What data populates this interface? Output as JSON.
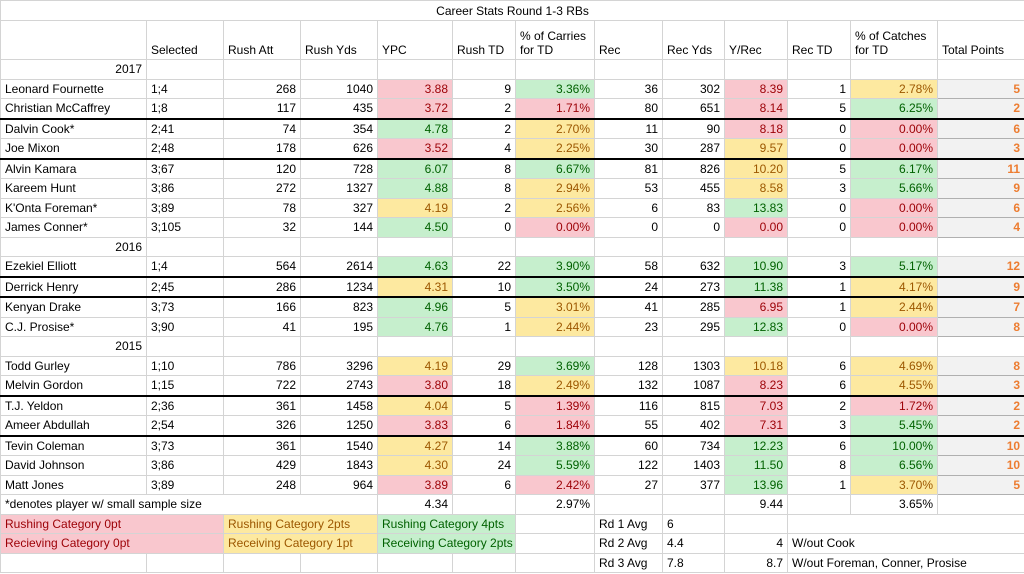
{
  "title": "Career Stats Round 1-3 RBs",
  "headers": [
    "",
    "Selected",
    "Rush Att",
    "Rush Yds",
    "YPC",
    "Rush TD",
    "% of Carries for TD",
    "Rec",
    "Rec Yds",
    "Y/Rec",
    "Rec TD",
    "% of Catches for TD",
    "Total Points"
  ],
  "groups": [
    {
      "year": "2017",
      "players": [
        {
          "name": "Leonard Fournette",
          "selected": "1;4",
          "rush_att": "268",
          "rush_yds": "1040",
          "ypc": "3.88",
          "ypc_c": "red",
          "rush_td": "9",
          "pct_carries": "3.36%",
          "pct_carries_c": "grn",
          "rec": "36",
          "rec_yds": "302",
          "y_rec": "8.39",
          "y_rec_c": "red",
          "rec_td": "1",
          "pct_catches": "2.78%",
          "pct_catches_c": "yel",
          "points": "5",
          "sep": false
        },
        {
          "name": "Christian McCaffrey",
          "selected": "1;8",
          "rush_att": "117",
          "rush_yds": "435",
          "ypc": "3.72",
          "ypc_c": "red",
          "rush_td": "2",
          "pct_carries": "1.71%",
          "pct_carries_c": "red",
          "rec": "80",
          "rec_yds": "651",
          "y_rec": "8.14",
          "y_rec_c": "red",
          "rec_td": "5",
          "pct_catches": "6.25%",
          "pct_catches_c": "grn",
          "points": "2",
          "sep": false
        },
        {
          "name": "Dalvin Cook*",
          "selected": "2;41",
          "rush_att": "74",
          "rush_yds": "354",
          "ypc": "4.78",
          "ypc_c": "grn",
          "rush_td": "2",
          "pct_carries": "2.70%",
          "pct_carries_c": "yel",
          "rec": "11",
          "rec_yds": "90",
          "y_rec": "8.18",
          "y_rec_c": "red",
          "rec_td": "0",
          "pct_catches": "0.00%",
          "pct_catches_c": "red",
          "points": "6",
          "sep": true
        },
        {
          "name": "Joe Mixon",
          "selected": "2;48",
          "rush_att": "178",
          "rush_yds": "626",
          "ypc": "3.52",
          "ypc_c": "red",
          "rush_td": "4",
          "pct_carries": "2.25%",
          "pct_carries_c": "yel",
          "rec": "30",
          "rec_yds": "287",
          "y_rec": "9.57",
          "y_rec_c": "yel",
          "rec_td": "0",
          "pct_catches": "0.00%",
          "pct_catches_c": "red",
          "points": "3",
          "sep": false
        },
        {
          "name": "Alvin Kamara",
          "selected": "3;67",
          "rush_att": "120",
          "rush_yds": "728",
          "ypc": "6.07",
          "ypc_c": "grn",
          "rush_td": "8",
          "pct_carries": "6.67%",
          "pct_carries_c": "grn",
          "rec": "81",
          "rec_yds": "826",
          "y_rec": "10.20",
          "y_rec_c": "yel",
          "rec_td": "5",
          "pct_catches": "6.17%",
          "pct_catches_c": "grn",
          "points": "11",
          "sep": true
        },
        {
          "name": "Kareem Hunt",
          "selected": "3;86",
          "rush_att": "272",
          "rush_yds": "1327",
          "ypc": "4.88",
          "ypc_c": "grn",
          "rush_td": "8",
          "pct_carries": "2.94%",
          "pct_carries_c": "yel",
          "rec": "53",
          "rec_yds": "455",
          "y_rec": "8.58",
          "y_rec_c": "yel",
          "rec_td": "3",
          "pct_catches": "5.66%",
          "pct_catches_c": "grn",
          "points": "9",
          "sep": false
        },
        {
          "name": "K'Onta Foreman*",
          "selected": "3;89",
          "rush_att": "78",
          "rush_yds": "327",
          "ypc": "4.19",
          "ypc_c": "yel",
          "rush_td": "2",
          "pct_carries": "2.56%",
          "pct_carries_c": "yel",
          "rec": "6",
          "rec_yds": "83",
          "y_rec": "13.83",
          "y_rec_c": "grn",
          "rec_td": "0",
          "pct_catches": "0.00%",
          "pct_catches_c": "red",
          "points": "6",
          "sep": false
        },
        {
          "name": "James Conner*",
          "selected": "3;105",
          "rush_att": "32",
          "rush_yds": "144",
          "ypc": "4.50",
          "ypc_c": "grn",
          "rush_td": "0",
          "pct_carries": "0.00%",
          "pct_carries_c": "red",
          "rec": "0",
          "rec_yds": "0",
          "y_rec": "0.00",
          "y_rec_c": "red",
          "rec_td": "0",
          "pct_catches": "0.00%",
          "pct_catches_c": "red",
          "points": "4",
          "sep": false
        }
      ]
    },
    {
      "year": "2016",
      "players": [
        {
          "name": "Ezekiel Elliott",
          "selected": "1;4",
          "rush_att": "564",
          "rush_yds": "2614",
          "ypc": "4.63",
          "ypc_c": "grn",
          "rush_td": "22",
          "pct_carries": "3.90%",
          "pct_carries_c": "grn",
          "rec": "58",
          "rec_yds": "632",
          "y_rec": "10.90",
          "y_rec_c": "grn",
          "rec_td": "3",
          "pct_catches": "5.17%",
          "pct_catches_c": "grn",
          "points": "12",
          "sep": false
        },
        {
          "name": "Derrick Henry",
          "selected": "2;45",
          "rush_att": "286",
          "rush_yds": "1234",
          "ypc": "4.31",
          "ypc_c": "yel",
          "rush_td": "10",
          "pct_carries": "3.50%",
          "pct_carries_c": "grn",
          "rec": "24",
          "rec_yds": "273",
          "y_rec": "11.38",
          "y_rec_c": "grn",
          "rec_td": "1",
          "pct_catches": "4.17%",
          "pct_catches_c": "yel",
          "points": "9",
          "sep": true
        },
        {
          "name": "Kenyan Drake",
          "selected": "3;73",
          "rush_att": "166",
          "rush_yds": "823",
          "ypc": "4.96",
          "ypc_c": "grn",
          "rush_td": "5",
          "pct_carries": "3.01%",
          "pct_carries_c": "yel",
          "rec": "41",
          "rec_yds": "285",
          "y_rec": "6.95",
          "y_rec_c": "red",
          "rec_td": "1",
          "pct_catches": "2.44%",
          "pct_catches_c": "yel",
          "points": "7",
          "sep": true
        },
        {
          "name": "C.J. Prosise*",
          "selected": "3;90",
          "rush_att": "41",
          "rush_yds": "195",
          "ypc": "4.76",
          "ypc_c": "grn",
          "rush_td": "1",
          "pct_carries": "2.44%",
          "pct_carries_c": "yel",
          "rec": "23",
          "rec_yds": "295",
          "y_rec": "12.83",
          "y_rec_c": "grn",
          "rec_td": "0",
          "pct_catches": "0.00%",
          "pct_catches_c": "red",
          "points": "8",
          "sep": false
        }
      ]
    },
    {
      "year": "2015",
      "players": [
        {
          "name": "Todd Gurley",
          "selected": "1;10",
          "rush_att": "786",
          "rush_yds": "3296",
          "ypc": "4.19",
          "ypc_c": "yel",
          "rush_td": "29",
          "pct_carries": "3.69%",
          "pct_carries_c": "grn",
          "rec": "128",
          "rec_yds": "1303",
          "y_rec": "10.18",
          "y_rec_c": "yel",
          "rec_td": "6",
          "pct_catches": "4.69%",
          "pct_catches_c": "yel",
          "points": "8",
          "sep": false
        },
        {
          "name": "Melvin Gordon",
          "selected": "1;15",
          "rush_att": "722",
          "rush_yds": "2743",
          "ypc": "3.80",
          "ypc_c": "red",
          "rush_td": "18",
          "pct_carries": "2.49%",
          "pct_carries_c": "yel",
          "rec": "132",
          "rec_yds": "1087",
          "y_rec": "8.23",
          "y_rec_c": "red",
          "rec_td": "6",
          "pct_catches": "4.55%",
          "pct_catches_c": "yel",
          "points": "3",
          "sep": false
        },
        {
          "name": "T.J. Yeldon",
          "selected": "2;36",
          "rush_att": "361",
          "rush_yds": "1458",
          "ypc": "4.04",
          "ypc_c": "yel",
          "rush_td": "5",
          "pct_carries": "1.39%",
          "pct_carries_c": "red",
          "rec": "116",
          "rec_yds": "815",
          "y_rec": "7.03",
          "y_rec_c": "red",
          "rec_td": "2",
          "pct_catches": "1.72%",
          "pct_catches_c": "red",
          "points": "2",
          "sep": true
        },
        {
          "name": "Ameer Abdullah",
          "selected": "2;54",
          "rush_att": "326",
          "rush_yds": "1250",
          "ypc": "3.83",
          "ypc_c": "red",
          "rush_td": "6",
          "pct_carries": "1.84%",
          "pct_carries_c": "red",
          "rec": "55",
          "rec_yds": "402",
          "y_rec": "7.31",
          "y_rec_c": "red",
          "rec_td": "3",
          "pct_catches": "5.45%",
          "pct_catches_c": "grn",
          "points": "2",
          "sep": false
        },
        {
          "name": "Tevin Coleman",
          "selected": "3;73",
          "rush_att": "361",
          "rush_yds": "1540",
          "ypc": "4.27",
          "ypc_c": "yel",
          "rush_td": "14",
          "pct_carries": "3.88%",
          "pct_carries_c": "grn",
          "rec": "60",
          "rec_yds": "734",
          "y_rec": "12.23",
          "y_rec_c": "grn",
          "rec_td": "6",
          "pct_catches": "10.00%",
          "pct_catches_c": "grn",
          "points": "10",
          "sep": true
        },
        {
          "name": "David Johnson",
          "selected": "3;86",
          "rush_att": "429",
          "rush_yds": "1843",
          "ypc": "4.30",
          "ypc_c": "yel",
          "rush_td": "24",
          "pct_carries": "5.59%",
          "pct_carries_c": "grn",
          "rec": "122",
          "rec_yds": "1403",
          "y_rec": "11.50",
          "y_rec_c": "grn",
          "rec_td": "8",
          "pct_catches": "6.56%",
          "pct_catches_c": "grn",
          "points": "10",
          "sep": false
        },
        {
          "name": "Matt Jones",
          "selected": "3;89",
          "rush_att": "248",
          "rush_yds": "964",
          "ypc": "3.89",
          "ypc_c": "red",
          "rush_td": "6",
          "pct_carries": "2.42%",
          "pct_carries_c": "red",
          "rec": "27",
          "rec_yds": "377",
          "y_rec": "13.96",
          "y_rec_c": "grn",
          "rec_td": "1",
          "pct_catches": "3.70%",
          "pct_catches_c": "yel",
          "points": "5",
          "sep": false
        }
      ]
    }
  ],
  "footnote": "*denotes player w/ small sample size",
  "averages": {
    "ypc": "4.34",
    "pct_carries": "2.97%",
    "y_rec": "9.44",
    "pct_catches": "3.65%"
  },
  "legend": {
    "rush_red": "Rushing Category 0pt",
    "rush_yel": "Rushing Category 2pts",
    "rush_grn": "Rushing Category 4pts",
    "rec_red": "Recieving Category 0pt",
    "rec_yel": "Receiving Category 1pt",
    "rec_grn": "Receiving Category 2pts"
  },
  "round_avgs": [
    {
      "label": "Rd 1 Avg",
      "v1": "6",
      "v2": "",
      "note": ""
    },
    {
      "label": "Rd 2 Avg",
      "v1": "4.4",
      "v2": "4",
      "note": "W/out Cook"
    },
    {
      "label": "Rd 3 Avg",
      "v1": "7.8",
      "v2": "8.7",
      "note": "W/out Foreman, Conner, Prosise"
    }
  ],
  "colors": {
    "red_bg": "#f9c7ce",
    "red_fg": "#9c0006",
    "yellow_bg": "#fde9a0",
    "yellow_fg": "#9c5700",
    "green_bg": "#c6efcd",
    "green_fg": "#006100",
    "points_fg": "#ed7d31"
  }
}
